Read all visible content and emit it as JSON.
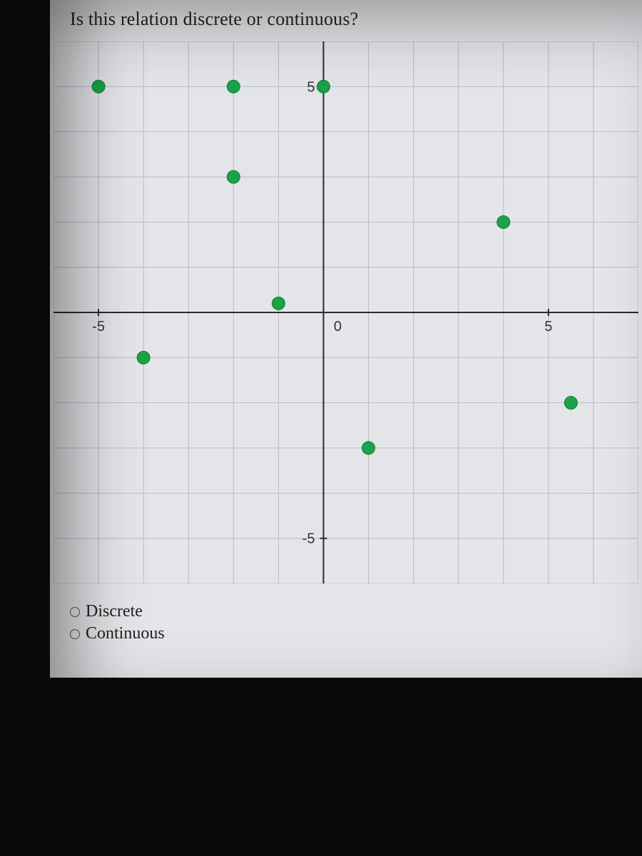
{
  "question": "Is this relation discrete or continuous?",
  "options": [
    {
      "label": "Discrete"
    },
    {
      "label": "Continuous"
    }
  ],
  "chart": {
    "type": "scatter",
    "xlim": [
      -6,
      7
    ],
    "ylim": [
      -6,
      6
    ],
    "xticks": [
      -5,
      0,
      5
    ],
    "yticks": [
      -5,
      5
    ],
    "origin_label": "0",
    "grid_step": 1,
    "background_color": "#e4e5e8",
    "grid_color": "#b9bbc1",
    "axis_color": "#2b2b2b",
    "axis_width": 2,
    "tick_length": 10,
    "tick_width": 2,
    "label_fontsize": 20,
    "label_color": "#333333",
    "point_radius": 9,
    "point_fill": "#1aa34a",
    "point_stroke": "#0f7a35",
    "point_stroke_width": 1,
    "points": [
      {
        "x": -5,
        "y": 5
      },
      {
        "x": -2,
        "y": 5
      },
      {
        "x": 0,
        "y": 5
      },
      {
        "x": -2,
        "y": 3
      },
      {
        "x": -1,
        "y": 0.2
      },
      {
        "x": 4,
        "y": 2
      },
      {
        "x": -4,
        "y": -1
      },
      {
        "x": 1,
        "y": -3
      },
      {
        "x": 5.5,
        "y": -2
      }
    ]
  }
}
